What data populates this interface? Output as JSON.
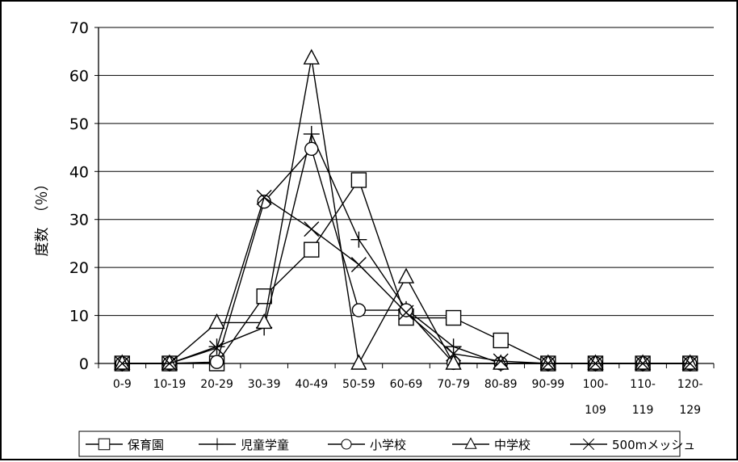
{
  "chart_data": {
    "type": "line",
    "title": "",
    "xlabel": "",
    "ylabel": "度数　（％）",
    "ylim": [
      0,
      70
    ],
    "yticks": [
      0,
      10,
      20,
      30,
      40,
      50,
      60,
      70
    ],
    "grid": true,
    "legend": "bottom",
    "categories": [
      [
        "0-9"
      ],
      [
        "10-19"
      ],
      [
        "20-29"
      ],
      [
        "30-39"
      ],
      [
        "40-49"
      ],
      [
        "50-59"
      ],
      [
        "60-69"
      ],
      [
        "70-79"
      ],
      [
        "80-89"
      ],
      [
        "90-99"
      ],
      [
        "100-",
        "109"
      ],
      [
        "110-",
        "119"
      ],
      [
        "120-",
        "129"
      ]
    ],
    "series": [
      {
        "name": "保育園",
        "marker": "square",
        "values": [
          0,
          0,
          0,
          14,
          23.7,
          38.2,
          9.5,
          9.5,
          4.8,
          0,
          0,
          0,
          0
        ]
      },
      {
        "name": "児童学童",
        "marker": "plus",
        "values": [
          0,
          0,
          3.5,
          7.5,
          47.8,
          25.8,
          11.3,
          3.5,
          0,
          0,
          0,
          0,
          0
        ]
      },
      {
        "name": "小学校",
        "marker": "circle",
        "values": [
          0,
          0,
          0.3,
          33.7,
          44.7,
          11.1,
          11.1,
          0.1,
          0,
          0,
          0,
          0,
          0
        ]
      },
      {
        "name": "中学校",
        "marker": "triangle",
        "values": [
          0,
          0,
          8.5,
          8.5,
          63.6,
          0,
          18,
          0,
          0,
          0,
          0,
          0,
          0
        ]
      },
      {
        "name": "500mメッシュ",
        "marker": "x",
        "values": [
          0,
          0,
          3.2,
          34.6,
          28,
          20.6,
          10.6,
          2,
          0.5,
          0,
          0,
          0,
          0
        ]
      }
    ]
  }
}
